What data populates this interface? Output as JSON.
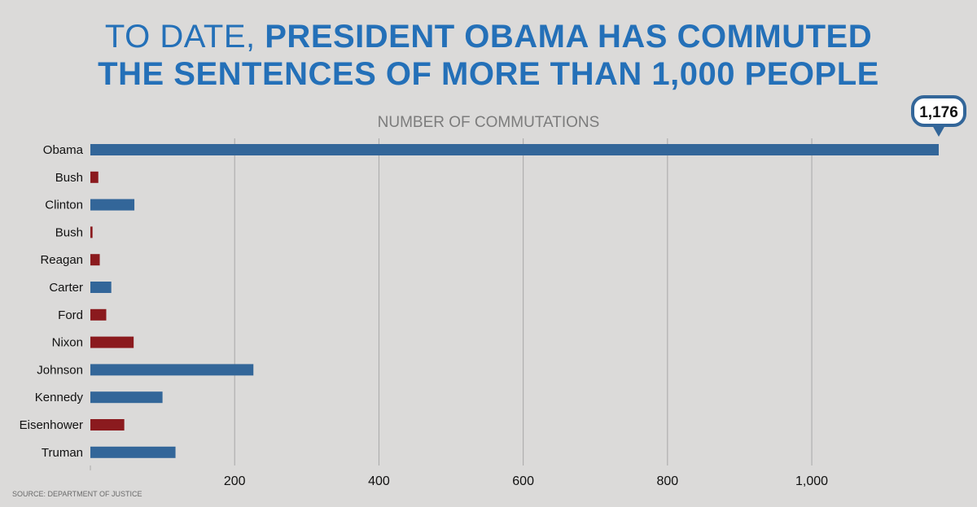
{
  "title": {
    "line1_light": "TO DATE, ",
    "line1_bold": "PRESIDENT OBAMA HAS COMMUTED",
    "line2": "THE SENTENCES OF MORE THAN 1,000 PEOPLE"
  },
  "source": "SOURCE: DEPARTMENT OF JUSTICE",
  "colors": {
    "democrat": "#336699",
    "republican": "#8b1a1e",
    "title": "#2470b8",
    "grid": "#a8a8a8"
  },
  "chart_data": {
    "type": "bar",
    "orientation": "horizontal",
    "title": "NUMBER OF COMMUTATIONS",
    "xlabel": "",
    "ylabel": "",
    "xlim": [
      0,
      1176
    ],
    "xticks": [
      200,
      400,
      600,
      800,
      1000
    ],
    "xtick_labels": [
      "200",
      "400",
      "600",
      "800",
      "1,000"
    ],
    "grid": true,
    "categories": [
      "Obama",
      "Bush",
      "Clinton",
      "Bush",
      "Reagan",
      "Carter",
      "Ford",
      "Nixon",
      "Johnson",
      "Kennedy",
      "Eisenhower",
      "Truman"
    ],
    "values": [
      1176,
      11,
      61,
      3,
      13,
      29,
      22,
      60,
      226,
      100,
      47,
      118
    ],
    "party": [
      "D",
      "R",
      "D",
      "R",
      "R",
      "D",
      "R",
      "R",
      "D",
      "D",
      "R",
      "D"
    ],
    "annotation": {
      "category": "Obama",
      "label": "1,176"
    }
  }
}
